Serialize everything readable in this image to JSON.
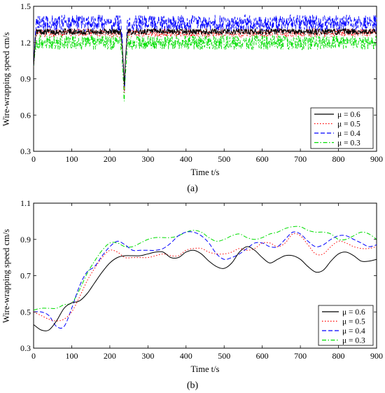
{
  "chart_data": [
    {
      "type": "line",
      "caption": "(a)",
      "xlabel": "Time t/s",
      "ylabel": "Wire-wrapping speed cm/s",
      "xlim": [
        0,
        900
      ],
      "ylim": [
        0.3,
        1.5
      ],
      "xticks": [
        0,
        100,
        200,
        300,
        400,
        500,
        600,
        700,
        800,
        900
      ],
      "yticks": [
        0.3,
        0.6,
        0.9,
        1.2,
        1.5
      ],
      "ytick_labels": [
        "0.3",
        "0.6",
        "0.9",
        "1.2",
        "1.5"
      ],
      "grid": false,
      "legend_position": "bottom-right",
      "dip": {
        "t": 238,
        "width": 10
      },
      "series": [
        {
          "name": "μ = 0.6",
          "color": "#000000",
          "dash": "solid",
          "mean": 1.29,
          "amp": 0.025,
          "start": 1.0,
          "dip_min": 0.86
        },
        {
          "name": "μ = 0.5",
          "color": "#ff0000",
          "dash": "dotted",
          "mean": 1.28,
          "amp": 0.035,
          "start": 1.0,
          "dip_min": 0.82
        },
        {
          "name": "μ = 0.4",
          "color": "#0000ff",
          "dash": "dashed",
          "mean": 1.36,
          "amp": 0.07,
          "start": 1.0,
          "dip_min": 0.76
        },
        {
          "name": "μ = 0.3",
          "color": "#00dd00",
          "dash": "dashdot",
          "mean": 1.2,
          "amp": 0.06,
          "start": 1.0,
          "dip_min": 0.71
        }
      ]
    },
    {
      "type": "line",
      "caption": "(b)",
      "xlabel": "Time t/s",
      "ylabel": "Wire-wrapping speed cm/s",
      "xlim": [
        0,
        900
      ],
      "ylim": [
        0.3,
        1.1
      ],
      "xticks": [
        0,
        100,
        200,
        300,
        400,
        500,
        600,
        700,
        800,
        900
      ],
      "yticks": [
        0.3,
        0.5,
        0.7,
        0.9,
        1.1
      ],
      "ytick_labels": [
        "0.3",
        "0.5",
        "0.7",
        "0.9",
        "1.1"
      ],
      "grid": false,
      "legend_position": "bottom-right",
      "series": [
        {
          "name": "μ = 0.6",
          "color": "#000000",
          "dash": "solid",
          "x": [
            0,
            20,
            40,
            60,
            80,
            100,
            120,
            140,
            160,
            180,
            200,
            220,
            240,
            260,
            280,
            300,
            320,
            340,
            360,
            380,
            400,
            420,
            440,
            460,
            480,
            500,
            520,
            540,
            560,
            580,
            600,
            620,
            640,
            660,
            680,
            700,
            720,
            740,
            760,
            780,
            800,
            820,
            840,
            860,
            880,
            900
          ],
          "y": [
            0.43,
            0.4,
            0.4,
            0.45,
            0.52,
            0.55,
            0.56,
            0.6,
            0.66,
            0.72,
            0.77,
            0.8,
            0.81,
            0.81,
            0.81,
            0.82,
            0.83,
            0.83,
            0.8,
            0.8,
            0.83,
            0.84,
            0.82,
            0.78,
            0.75,
            0.74,
            0.77,
            0.83,
            0.86,
            0.84,
            0.8,
            0.77,
            0.79,
            0.81,
            0.81,
            0.79,
            0.75,
            0.72,
            0.73,
            0.78,
            0.82,
            0.83,
            0.81,
            0.78,
            0.78,
            0.79
          ]
        },
        {
          "name": "μ = 0.5",
          "color": "#ff0000",
          "dash": "dotted",
          "x": [
            0,
            20,
            40,
            60,
            80,
            100,
            120,
            140,
            160,
            180,
            200,
            220,
            240,
            260,
            280,
            300,
            320,
            340,
            360,
            380,
            400,
            420,
            440,
            460,
            480,
            500,
            520,
            540,
            560,
            580,
            600,
            620,
            640,
            660,
            680,
            700,
            720,
            740,
            760,
            780,
            800,
            820,
            840,
            860,
            880,
            900
          ],
          "y": [
            0.5,
            0.48,
            0.46,
            0.45,
            0.46,
            0.5,
            0.58,
            0.67,
            0.74,
            0.8,
            0.84,
            0.83,
            0.8,
            0.8,
            0.8,
            0.8,
            0.81,
            0.82,
            0.81,
            0.81,
            0.84,
            0.85,
            0.85,
            0.83,
            0.82,
            0.82,
            0.83,
            0.85,
            0.84,
            0.85,
            0.88,
            0.88,
            0.86,
            0.88,
            0.93,
            0.92,
            0.87,
            0.82,
            0.82,
            0.86,
            0.89,
            0.88,
            0.86,
            0.85,
            0.85,
            0.86
          ]
        },
        {
          "name": "μ = 0.4",
          "color": "#0000ff",
          "dash": "dashed",
          "x": [
            0,
            20,
            40,
            60,
            80,
            100,
            120,
            140,
            160,
            180,
            200,
            220,
            240,
            260,
            280,
            300,
            320,
            340,
            360,
            380,
            400,
            420,
            440,
            460,
            480,
            500,
            520,
            540,
            560,
            580,
            600,
            620,
            640,
            660,
            680,
            700,
            720,
            740,
            760,
            780,
            800,
            820,
            840,
            860,
            880,
            900
          ],
          "y": [
            0.5,
            0.5,
            0.48,
            0.42,
            0.42,
            0.52,
            0.64,
            0.72,
            0.75,
            0.81,
            0.86,
            0.89,
            0.87,
            0.84,
            0.84,
            0.84,
            0.84,
            0.85,
            0.88,
            0.92,
            0.94,
            0.94,
            0.92,
            0.88,
            0.82,
            0.79,
            0.8,
            0.82,
            0.85,
            0.88,
            0.88,
            0.86,
            0.86,
            0.9,
            0.94,
            0.93,
            0.89,
            0.86,
            0.87,
            0.9,
            0.92,
            0.92,
            0.9,
            0.88,
            0.86,
            0.87
          ]
        },
        {
          "name": "μ = 0.3",
          "color": "#00dd00",
          "dash": "dashdot",
          "x": [
            0,
            20,
            40,
            60,
            80,
            100,
            120,
            140,
            160,
            180,
            200,
            220,
            240,
            260,
            280,
            300,
            320,
            340,
            360,
            380,
            400,
            420,
            440,
            460,
            480,
            500,
            520,
            540,
            560,
            580,
            600,
            620,
            640,
            660,
            680,
            700,
            720,
            740,
            760,
            780,
            800,
            820,
            840,
            860,
            880,
            900
          ],
          "y": [
            0.51,
            0.52,
            0.52,
            0.52,
            0.54,
            0.55,
            0.62,
            0.71,
            0.78,
            0.84,
            0.88,
            0.88,
            0.86,
            0.86,
            0.88,
            0.9,
            0.91,
            0.91,
            0.91,
            0.92,
            0.94,
            0.95,
            0.94,
            0.91,
            0.89,
            0.9,
            0.92,
            0.93,
            0.91,
            0.9,
            0.91,
            0.93,
            0.94,
            0.96,
            0.97,
            0.97,
            0.95,
            0.94,
            0.94,
            0.93,
            0.9,
            0.9,
            0.92,
            0.94,
            0.93,
            0.9
          ]
        }
      ]
    }
  ]
}
